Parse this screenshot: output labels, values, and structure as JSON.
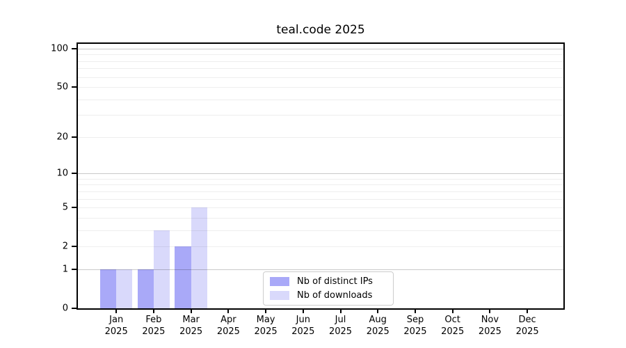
{
  "chart_data": {
    "type": "bar",
    "title": "teal.code 2025",
    "categories": [
      "Jan",
      "Feb",
      "Mar",
      "Apr",
      "May",
      "Jun",
      "Jul",
      "Aug",
      "Sep",
      "Oct",
      "Nov",
      "Dec"
    ],
    "year_label": "2025",
    "series": [
      {
        "name": "Nb of distinct IPs",
        "color": "#a9a9f8",
        "values": [
          1,
          1,
          2,
          0,
          0,
          0,
          0,
          0,
          0,
          0,
          0,
          0
        ]
      },
      {
        "name": "Nb of downloads",
        "color": "#d9d9fb",
        "values": [
          1,
          3,
          5,
          0,
          0,
          0,
          0,
          0,
          0,
          0,
          0,
          0
        ]
      }
    ],
    "yscale": "log1p",
    "ylim": [
      0,
      100
    ],
    "yticks": [
      0,
      1,
      2,
      5,
      10,
      20,
      50,
      100
    ],
    "major_gridlines": [
      1,
      10,
      100
    ],
    "minor_gridlines": [
      2,
      3,
      4,
      5,
      6,
      7,
      8,
      9,
      20,
      30,
      40,
      50,
      60,
      70,
      80,
      90
    ],
    "grid": true,
    "legend_position": "bottom-center",
    "xlabel": "",
    "ylabel": ""
  }
}
